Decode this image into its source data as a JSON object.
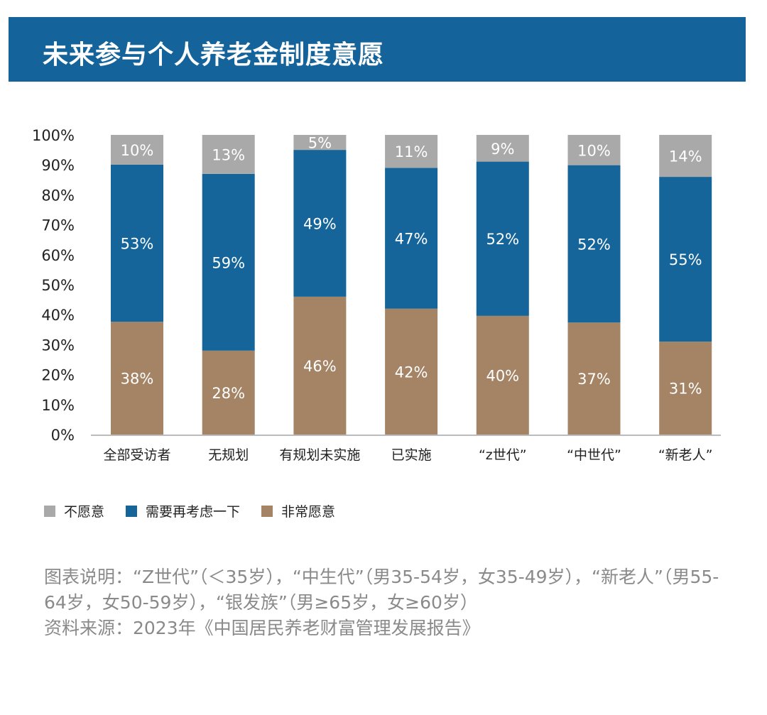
{
  "chart_data": {
    "type": "bar",
    "stacked": true,
    "title": "未来参与个人养老金制度意愿",
    "categories": [
      "全部受访者",
      "无规划",
      "有规划未实施",
      "已实施",
      "“z世代”",
      "“中世代”",
      "“新老人”"
    ],
    "series": [
      {
        "name": "非常愿意",
        "color": "#a58466",
        "values": [
          38,
          28,
          46,
          42,
          40,
          37,
          31
        ]
      },
      {
        "name": "需要再考虑一下",
        "color": "#15659a",
        "values": [
          53,
          59,
          49,
          47,
          52,
          52,
          55
        ]
      },
      {
        "name": "不愿意",
        "color": "#a9a9a9",
        "values": [
          10,
          13,
          5,
          11,
          9,
          10,
          14
        ]
      }
    ],
    "legend_order": [
      2,
      1,
      0
    ],
    "ylim": [
      0,
      100
    ],
    "yticks": [
      "0%",
      "10%",
      "20%",
      "30%",
      "40%",
      "50%",
      "60%",
      "70%",
      "80%",
      "90%",
      "100%"
    ],
    "legend_position": "bottom-left",
    "grid": false
  },
  "notes": {
    "description": "图表说明：“Z世代”（＜35岁），“中生代”（男35-54岁，女35-49岁），“新老人”（男55-64岁，女50-59岁），“银发族”（男≥65岁，女≥60岁）",
    "source": "资料来源：2023年《中国居民养老财富管理发展报告》"
  }
}
